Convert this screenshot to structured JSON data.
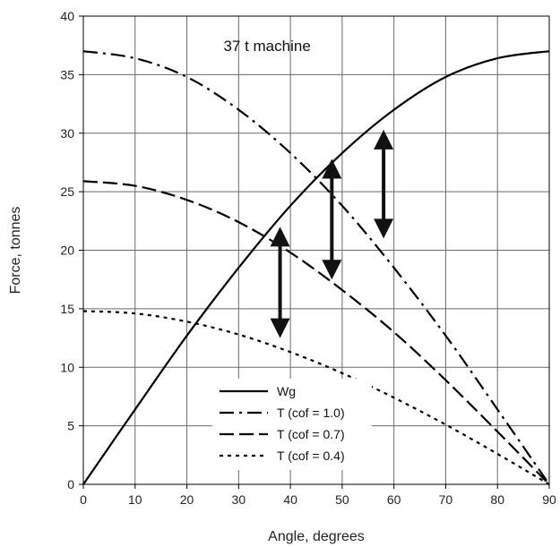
{
  "chart_data": {
    "type": "line",
    "title": "",
    "annotation": "37 t machine",
    "xlabel": "Angle, degrees",
    "ylabel": "Force, tonnes",
    "xlim": [
      0,
      90
    ],
    "ylim": [
      0,
      40
    ],
    "xticks": [
      0,
      10,
      20,
      30,
      40,
      50,
      60,
      70,
      80,
      90
    ],
    "yticks": [
      0,
      5,
      10,
      15,
      20,
      25,
      30,
      35,
      40
    ],
    "grid": true,
    "legend_position": "bottom-center",
    "x": [
      0,
      10,
      20,
      30,
      40,
      50,
      60,
      70,
      80,
      90
    ],
    "series": [
      {
        "name": "Wg",
        "dash": "solid",
        "color": "#000000",
        "values": [
          0,
          6.4,
          12.7,
          18.5,
          23.8,
          28.3,
          32.0,
          34.8,
          36.4,
          37.0
        ]
      },
      {
        "name": "T (cof = 1.0)",
        "dash": "dash-dot",
        "color": "#000000",
        "values": [
          37.0,
          36.4,
          34.8,
          32.0,
          28.3,
          23.8,
          18.5,
          12.7,
          6.4,
          0
        ]
      },
      {
        "name": "T (cof = 0.7)",
        "dash": "dashed",
        "color": "#000000",
        "values": [
          25.9,
          25.5,
          24.3,
          22.4,
          19.8,
          16.6,
          13.0,
          8.9,
          4.5,
          0
        ]
      },
      {
        "name": "T (cof = 0.4)",
        "dash": "dotted",
        "color": "#000000",
        "values": [
          14.8,
          14.6,
          13.9,
          12.8,
          11.3,
          9.5,
          7.4,
          5.1,
          2.6,
          0
        ]
      }
    ],
    "arrows": [
      {
        "x": 38,
        "y_from": 12.5,
        "y_to": 22.0
      },
      {
        "x": 48,
        "y_from": 17.5,
        "y_to": 27.8
      },
      {
        "x": 58,
        "y_from": 21.0,
        "y_to": 30.3
      }
    ]
  }
}
